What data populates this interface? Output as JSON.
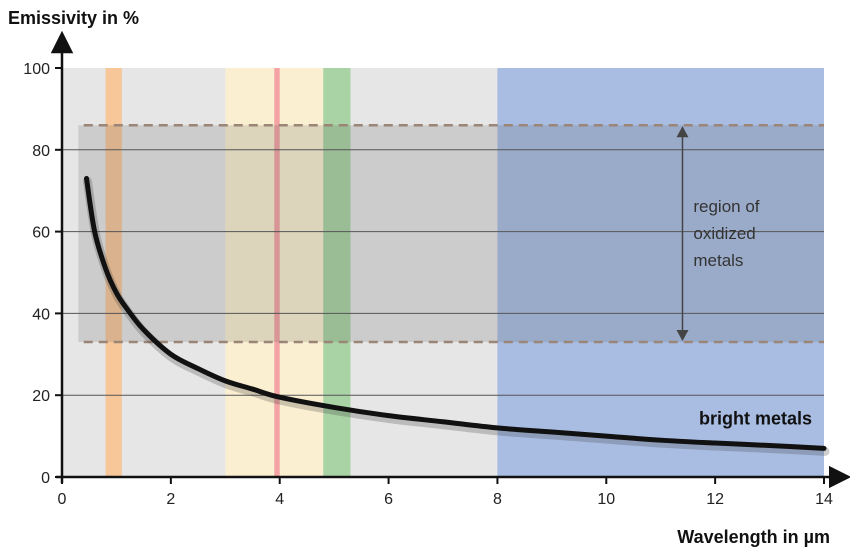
{
  "chart_data": {
    "type": "line",
    "ylabel": "Emissivity in %",
    "xlabel": "Wavelength in µm",
    "xlim": [
      0,
      14
    ],
    "ylim": [
      0,
      100
    ],
    "xticks": [
      "0",
      "2",
      "4",
      "6",
      "8",
      "10",
      "12",
      "14"
    ],
    "yticks": [
      "0",
      "20",
      "40",
      "60",
      "80",
      "100"
    ],
    "grid": "horizontal",
    "series": [
      {
        "name": "bright metals",
        "x": [
          0.45,
          0.6,
          0.8,
          1.0,
          1.2,
          1.5,
          2.0,
          2.5,
          3.0,
          3.5,
          4.0,
          5.0,
          6.0,
          7.0,
          8.0,
          9.0,
          10.0,
          11.0,
          12.0,
          13.0,
          14.0
        ],
        "y": [
          73,
          60,
          51,
          45,
          41,
          36,
          30,
          26.5,
          23.5,
          21.5,
          19.5,
          17,
          15,
          13.5,
          12,
          11,
          10,
          9,
          8.3,
          7.7,
          7
        ]
      }
    ],
    "bands": [
      {
        "x": [
          0.8,
          1.1
        ],
        "color": "#f7c79a"
      },
      {
        "x": [
          3.0,
          4.8
        ],
        "color": "#fbefd2"
      },
      {
        "x": [
          3.9,
          4.0
        ],
        "color": "#f3a3a3"
      },
      {
        "x": [
          4.8,
          5.3
        ],
        "color": "#a9d3a4"
      },
      {
        "x": [
          8.0,
          14.0
        ],
        "color": "#a9bde3"
      }
    ],
    "oxidized_region": {
      "ymin": 33,
      "ymax": 86,
      "label_lines": [
        "region of",
        "oxidized",
        "metals"
      ]
    },
    "annotation": "bright metals"
  }
}
